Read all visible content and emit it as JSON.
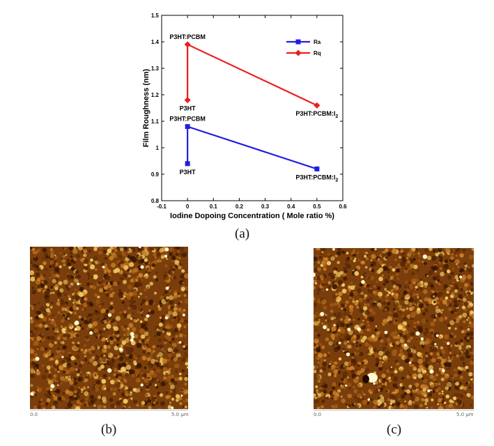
{
  "chart_data": {
    "type": "line",
    "xlabel": "Iodine Dopoing Concentration ( Mole ratio %)",
    "ylabel": "Film Roughness (nm)",
    "xlim": [
      -0.1,
      0.6
    ],
    "ylim": [
      0.8,
      1.5
    ],
    "x_ticks": [
      "-0.1",
      "0",
      "0.1",
      "0.2",
      "0.3",
      "0.4",
      "0.5",
      "0.6"
    ],
    "y_ticks": [
      "0.8",
      "0.9",
      "1",
      "1.1",
      "1.2",
      "1.3",
      "1.4",
      "1.5"
    ],
    "grid": false,
    "legend_position": "top-right",
    "series": [
      {
        "name": "Ra",
        "color": "#1f1fe0",
        "marker": "square",
        "points": [
          {
            "x": 0,
            "y": 0.94
          },
          {
            "x": 0,
            "y": 1.08
          },
          {
            "x": 0.5,
            "y": 0.92
          }
        ]
      },
      {
        "name": "Rq",
        "color": "#ee1c1c",
        "marker": "diamond",
        "points": [
          {
            "x": 0,
            "y": 1.18
          },
          {
            "x": 0,
            "y": 1.39
          },
          {
            "x": 0.5,
            "y": 1.16
          }
        ]
      }
    ],
    "annotations": [
      {
        "text": "P3HT:PCBM",
        "sub": "",
        "x": 0,
        "y": 1.39
      },
      {
        "text": "P3HT",
        "sub": "",
        "x": 0,
        "y": 1.18
      },
      {
        "text": "P3HT:PCBM:I",
        "sub": "2",
        "x": 0.5,
        "y": 1.16
      },
      {
        "text": "P3HT:PCBM",
        "sub": "",
        "x": 0,
        "y": 1.08
      },
      {
        "text": "P3HT",
        "sub": "",
        "x": 0,
        "y": 0.94
      },
      {
        "text": "P3HT:PCBM:I",
        "sub": "2",
        "x": 0.5,
        "y": 0.92
      }
    ]
  },
  "captions": {
    "a": "(a)",
    "b": "(b)",
    "c": "(c)"
  },
  "afm_images": [
    {
      "name": "afm-image-b",
      "scale_start": "0.0",
      "scale_end": "5.0 µm"
    },
    {
      "name": "afm-image-c",
      "scale_start": "0.0",
      "scale_end": "5.0 µm"
    }
  ],
  "colors": {
    "afm_dark": "#3a1700",
    "afm_mid": "#a35a12",
    "afm_light": "#f0c860",
    "afm_peak": "#fff8d0"
  }
}
